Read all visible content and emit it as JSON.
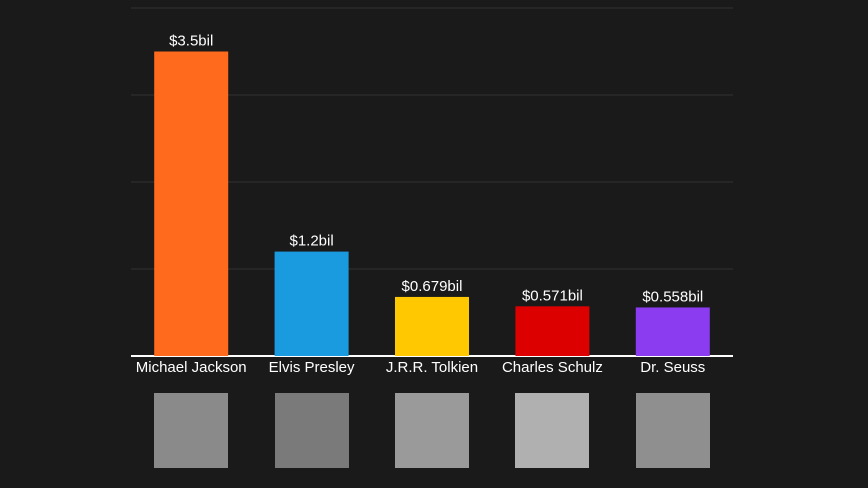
{
  "chart_data": {
    "type": "bar",
    "categories": [
      "Michael Jackson",
      "Elvis Presley",
      "J.R.R. Tolkien",
      "Charles Schulz",
      "Dr. Seuss"
    ],
    "values": [
      3.5,
      1.2,
      0.679,
      0.571,
      0.558
    ],
    "value_labels": [
      "$3.5bil",
      "$1.2bil",
      "$0.679bil",
      "$0.571bil",
      "$0.558bil"
    ],
    "colors": [
      "#ff6a1c",
      "#1a9be0",
      "#ffc800",
      "#dd0000",
      "#8b3cf0"
    ],
    "ylim": [
      0,
      4
    ],
    "yticks": [
      0,
      1,
      2,
      3,
      4
    ],
    "grid": true
  }
}
